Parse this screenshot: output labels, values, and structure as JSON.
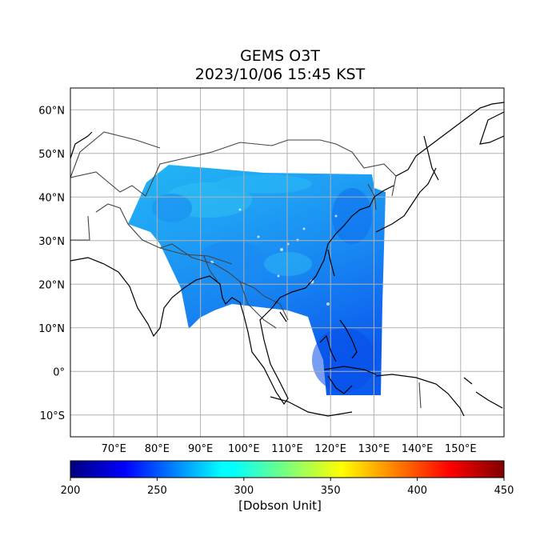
{
  "title": {
    "line1": "GEMS O3T",
    "line2": "2023/10/06 15:45 KST"
  },
  "map": {
    "lon_range": [
      60,
      160
    ],
    "lat_range": [
      -15,
      65
    ],
    "lat_ticks": [
      {
        "value": 60,
        "label": "60°N"
      },
      {
        "value": 50,
        "label": "50°N"
      },
      {
        "value": 40,
        "label": "40°N"
      },
      {
        "value": 30,
        "label": "30°N"
      },
      {
        "value": 20,
        "label": "20°N"
      },
      {
        "value": 10,
        "label": "10°N"
      },
      {
        "value": 0,
        "label": "0°"
      },
      {
        "value": -10,
        "label": "10°S"
      }
    ],
    "lon_ticks": [
      {
        "value": 70,
        "label": "70°E"
      },
      {
        "value": 80,
        "label": "80°E"
      },
      {
        "value": 90,
        "label": "90°E"
      },
      {
        "value": 100,
        "label": "100°E"
      },
      {
        "value": 110,
        "label": "110°E"
      },
      {
        "value": 120,
        "label": "120°E"
      },
      {
        "value": 130,
        "label": "130°E"
      },
      {
        "value": 140,
        "label": "140°E"
      },
      {
        "value": 150,
        "label": "150°E"
      }
    ],
    "gridlines": true
  },
  "colorbar": {
    "colormap": "jet",
    "min": 200,
    "max": 450,
    "ticks": [
      "200",
      "250",
      "300",
      "350",
      "400",
      "450"
    ],
    "label": "[Dobson Unit]"
  },
  "colors": {
    "data_dominant": "#1a9cf4",
    "data_low": "#0a55ee",
    "data_high": "#30d0f0",
    "coastline": "#000000",
    "border": "#444444",
    "grid": "#b0b0b0"
  }
}
